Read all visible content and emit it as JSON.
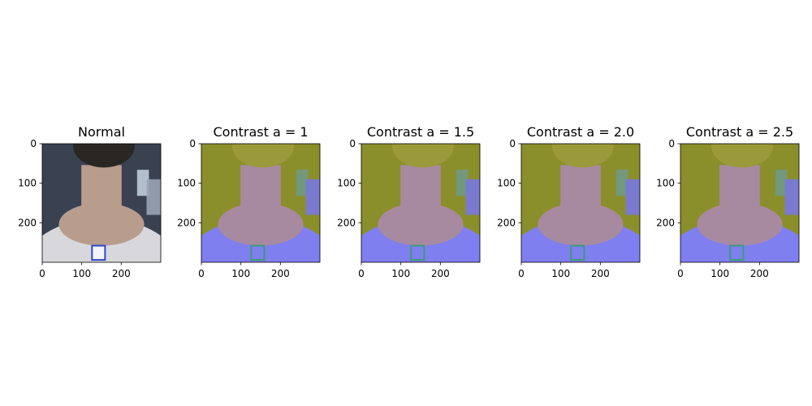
{
  "figure": {
    "panels": [
      {
        "title": "Normal",
        "variant": "normal",
        "x_ticks": [
          "0",
          "100",
          "200"
        ],
        "y_ticks": [
          "0",
          "100",
          "200"
        ]
      },
      {
        "title": "Contrast a = 1",
        "variant": "tinted",
        "x_ticks": [
          "0",
          "100",
          "200"
        ],
        "y_ticks": [
          "0",
          "100",
          "200"
        ]
      },
      {
        "title": "Contrast a = 1.5",
        "variant": "tinted",
        "x_ticks": [
          "0",
          "100",
          "200"
        ],
        "y_ticks": [
          "0",
          "100",
          "200"
        ]
      },
      {
        "title": "Contrast a = 2.0",
        "variant": "tinted",
        "x_ticks": [
          "0",
          "100",
          "200"
        ],
        "y_ticks": [
          "0",
          "100",
          "200"
        ]
      },
      {
        "title": "Contrast a = 2.5",
        "variant": "tinted",
        "x_ticks": [
          "0",
          "100",
          "200"
        ],
        "y_ticks": [
          "0",
          "100",
          "200"
        ]
      }
    ],
    "colors": {
      "normal_background": "#3a4252",
      "normal_hair": "#2a2624",
      "normal_skin": "#b89c8c",
      "normal_shirt": "#d8d8dc",
      "tinted_background": "#8a8f2c",
      "tinted_hair": "#9a9a3a",
      "tinted_skin": "#a88aa0",
      "tinted_shirt": "#7f7ff0",
      "tag_blue": "#3049c8",
      "tag_green": "#3c9a78"
    }
  }
}
